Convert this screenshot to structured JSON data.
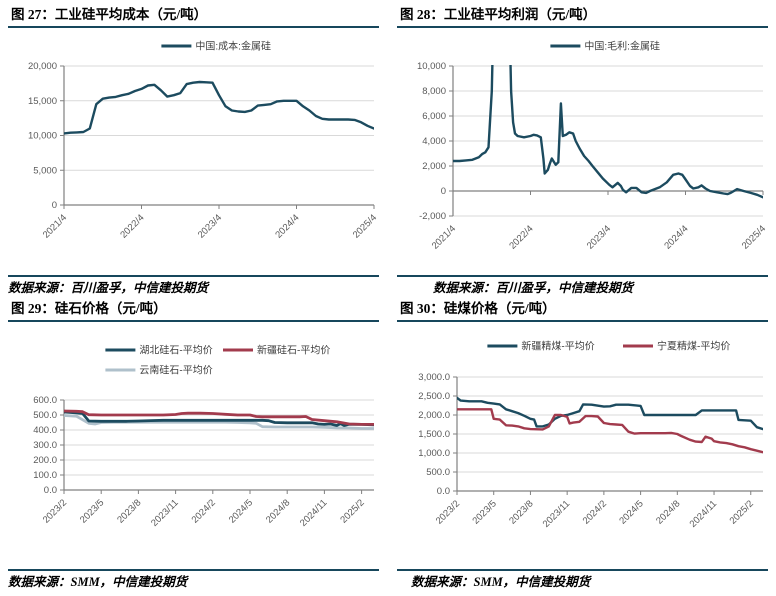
{
  "colors": {
    "teal": "#1C4B5F",
    "red": "#A23B4D",
    "lightgray": "#AFC0CB",
    "rule": "#17475C",
    "gridline": "#D9D9D9",
    "axis": "#808080",
    "tick_label": "#595959"
  },
  "chart_data": [
    {
      "type": "line",
      "title": "图 27：工业硅平均成本（元/吨）",
      "source": "数据来源：百川盈孚，中信建投期货",
      "xlabel": "",
      "ylabel": "",
      "grid": true,
      "legend_position": "top",
      "ylim": [
        0,
        20000
      ],
      "yticks": [
        0,
        5000,
        10000,
        15000,
        20000
      ],
      "ytick_labels": [
        "0",
        "5,000",
        "10,000",
        "15,000",
        "20,000"
      ],
      "xlim": [
        0,
        48
      ],
      "xticks": [
        {
          "pos": 0,
          "label": "2021/4"
        },
        {
          "pos": 12,
          "label": "2022/4"
        },
        {
          "pos": 24,
          "label": "2023/4"
        },
        {
          "pos": 36,
          "label": "2024/4"
        },
        {
          "pos": 48,
          "label": "2025/4"
        }
      ],
      "x_unit": "months from 2021/4",
      "series": [
        {
          "name": "中国:成本:金属硅",
          "color": "#1C4B5F",
          "x": [
            0,
            1,
            2,
            3,
            4,
            5,
            6,
            7,
            8,
            9,
            10,
            11,
            12,
            13,
            14,
            15,
            16,
            17,
            18,
            19,
            20,
            21,
            22,
            23,
            24,
            25,
            26,
            27,
            28,
            29,
            30,
            31,
            32,
            33,
            34,
            35,
            36,
            37,
            38,
            39,
            40,
            41,
            42,
            43,
            44,
            45,
            46,
            47,
            48
          ],
          "y": [
            10300,
            10400,
            10450,
            10500,
            11000,
            14500,
            15300,
            15450,
            15550,
            15800,
            16000,
            16400,
            16700,
            17200,
            17300,
            16500,
            15600,
            15800,
            16100,
            17400,
            17600,
            17700,
            17650,
            17600,
            15800,
            14200,
            13600,
            13450,
            13400,
            13600,
            14300,
            14400,
            14500,
            14900,
            15000,
            15000,
            15000,
            14200,
            13600,
            12800,
            12400,
            12300,
            12300,
            12300,
            12300,
            12250,
            11900,
            11400,
            11000
          ]
        }
      ]
    },
    {
      "type": "line",
      "title": "图 28：工业硅平均利润（元/吨）",
      "source": "数据来源：百川盈孚，中信建投期货",
      "xlabel": "",
      "ylabel": "",
      "grid": true,
      "legend_position": "top",
      "ylim": [
        -2000,
        10000
      ],
      "yticks": [
        -2000,
        0,
        2000,
        4000,
        6000,
        8000,
        10000
      ],
      "ytick_labels": [
        "-2,000",
        "0",
        "2,000",
        "4,000",
        "6,000",
        "8,000",
        "10,000"
      ],
      "axis_y": 0,
      "xlim": [
        0,
        48
      ],
      "xticks": [
        {
          "pos": 0,
          "label": "2021/4"
        },
        {
          "pos": 12,
          "label": "2022/4"
        },
        {
          "pos": 24,
          "label": "2023/4"
        },
        {
          "pos": 36,
          "label": "2024/4"
        },
        {
          "pos": 48,
          "label": "2025/4"
        }
      ],
      "x_unit": "months from 2021/4",
      "note": "values above 10000 are clipped off-chart as in source figure",
      "series": [
        {
          "name": "中国:毛利:金属硅",
          "color": "#1C4B5F",
          "x": [
            0,
            1,
            2,
            3,
            4,
            4.5,
            5,
            5.5,
            6,
            6.3,
            7,
            8,
            8.7,
            9,
            9.3,
            9.6,
            10,
            11,
            12,
            12.5,
            13,
            13.6,
            14,
            14.2,
            14.7,
            15,
            15.3,
            15.9,
            16.3,
            16.7,
            17,
            17.5,
            18,
            18.6,
            19,
            19.6,
            20.3,
            21,
            21.6,
            22.4,
            23.2,
            24.2,
            24.7,
            25.5,
            26,
            26.3,
            26.8,
            27.6,
            28.4,
            29.2,
            29.9,
            30.5,
            31,
            32,
            33.1,
            34.1,
            34.9,
            35.5,
            35.9,
            36.7,
            37.2,
            38,
            38.5,
            39.1,
            39.8,
            40.9,
            41.9,
            42.5,
            43,
            43.5,
            44,
            45,
            46.1,
            47.1,
            48
          ],
          "y": [
            2400,
            2400,
            2450,
            2500,
            2700,
            2950,
            3100,
            3500,
            8000,
            15000,
            30000,
            30000,
            15000,
            8000,
            5500,
            4600,
            4400,
            4300,
            4400,
            4500,
            4450,
            4300,
            2600,
            1400,
            1700,
            2200,
            2600,
            2100,
            2300,
            7000,
            4400,
            4500,
            4700,
            4600,
            4000,
            3400,
            2800,
            2400,
            2000,
            1500,
            1000,
            500,
            300,
            650,
            400,
            100,
            -100,
            250,
            250,
            -100,
            -150,
            0,
            100,
            300,
            700,
            1300,
            1400,
            1300,
            1000,
            400,
            200,
            300,
            450,
            200,
            0,
            -100,
            -200,
            -250,
            -150,
            0,
            150,
            0,
            -150,
            -300,
            -500
          ]
        }
      ]
    },
    {
      "type": "line",
      "title": "图 29：硅石价格（元/吨）",
      "source": "数据来源：SMM，中信建投期货",
      "xlabel": "",
      "ylabel": "",
      "grid": true,
      "legend_position": "top",
      "ylim": [
        0,
        600
      ],
      "yticks": [
        0,
        100,
        200,
        300,
        400,
        500,
        600
      ],
      "ytick_labels": [
        "0.0",
        "100.0",
        "200.0",
        "300.0",
        "400.0",
        "500.0",
        "600.0"
      ],
      "xlim": [
        0,
        25
      ],
      "xticks": [
        {
          "pos": 0,
          "label": "2023/2"
        },
        {
          "pos": 3,
          "label": "2023/5"
        },
        {
          "pos": 6,
          "label": "2023/8"
        },
        {
          "pos": 9,
          "label": "2023/11"
        },
        {
          "pos": 12,
          "label": "2024/2"
        },
        {
          "pos": 15,
          "label": "2024/5"
        },
        {
          "pos": 18,
          "label": "2024/8"
        },
        {
          "pos": 21,
          "label": "2024/11"
        },
        {
          "pos": 24,
          "label": "2025/2"
        }
      ],
      "x_unit": "months from 2023/2",
      "series": [
        {
          "name": "湖北硅石-平均价",
          "color": "#1C4B5F",
          "x": [
            0,
            1,
            1.5,
            2,
            3,
            4,
            5,
            6,
            7,
            8,
            9,
            10,
            11,
            12,
            13,
            14,
            15,
            16,
            16.5,
            17,
            18,
            19,
            20,
            20.5,
            21,
            21.5,
            22,
            22.3,
            22.6,
            23,
            24,
            25
          ],
          "y": [
            520,
            515,
            510,
            460,
            458,
            458,
            458,
            460,
            463,
            465,
            465,
            465,
            465,
            465,
            465,
            465,
            465,
            465,
            462,
            450,
            448,
            448,
            448,
            440,
            437,
            440,
            430,
            443,
            430,
            438,
            437,
            435
          ]
        },
        {
          "name": "新疆硅石-平均价",
          "color": "#A23B4D",
          "x": [
            0,
            1,
            1.5,
            2,
            3,
            4,
            5,
            6,
            7,
            8,
            9,
            9.5,
            10,
            11,
            12,
            13,
            14,
            15,
            15.5,
            16,
            17,
            18,
            19,
            19.5,
            20,
            21,
            22,
            23,
            24,
            25
          ],
          "y": [
            527,
            525,
            522,
            502,
            500,
            500,
            500,
            500,
            500,
            500,
            503,
            510,
            512,
            512,
            510,
            505,
            500,
            500,
            490,
            488,
            488,
            488,
            488,
            490,
            470,
            462,
            455,
            440,
            437,
            437
          ]
        },
        {
          "name": "云南硅石-平均价",
          "color": "#AFC0CB",
          "x": [
            0,
            1,
            2,
            2.5,
            3,
            4,
            5,
            6,
            7,
            8,
            9,
            10,
            11,
            12,
            13,
            14,
            15,
            15.5,
            16,
            17,
            18,
            19,
            20,
            21,
            22,
            23,
            24,
            25
          ],
          "y": [
            497,
            492,
            445,
            440,
            450,
            452,
            452,
            452,
            452,
            452,
            452,
            452,
            452,
            452,
            452,
            450,
            448,
            445,
            422,
            420,
            420,
            420,
            420,
            418,
            415,
            413,
            410,
            410
          ]
        }
      ]
    },
    {
      "type": "line",
      "title": "图 30：硅煤价格（元/吨）",
      "source": "数据来源：SMM，中信建投期货",
      "xlabel": "",
      "ylabel": "",
      "grid": true,
      "legend_position": "top",
      "ylim": [
        0,
        3000
      ],
      "yticks": [
        0,
        500,
        1000,
        1500,
        2000,
        2500,
        3000
      ],
      "ytick_labels": [
        "0.0",
        "500.0",
        "1,000.0",
        "1,500.0",
        "2,000.0",
        "2,500.0",
        "3,000.0"
      ],
      "xlim": [
        0,
        25
      ],
      "xticks": [
        {
          "pos": 0,
          "label": "2023/2"
        },
        {
          "pos": 3,
          "label": "2023/5"
        },
        {
          "pos": 6,
          "label": "2023/8"
        },
        {
          "pos": 9,
          "label": "2023/11"
        },
        {
          "pos": 12,
          "label": "2024/2"
        },
        {
          "pos": 15,
          "label": "2024/5"
        },
        {
          "pos": 18,
          "label": "2024/8"
        },
        {
          "pos": 21,
          "label": "2024/11"
        },
        {
          "pos": 24,
          "label": "2025/2"
        }
      ],
      "x_unit": "months from 2023/2",
      "series": [
        {
          "name": "新疆精煤-平均价",
          "color": "#1C4B5F",
          "x": [
            0,
            0.3,
            1,
            2,
            2.5,
            3,
            3.5,
            4,
            4.5,
            5,
            5.5,
            6,
            6.3,
            6.5,
            7,
            7.5,
            8,
            8.5,
            9,
            9.5,
            10,
            10.3,
            11,
            12,
            12.5,
            13,
            14,
            15,
            15.3,
            16,
            17,
            18,
            19,
            19.5,
            20,
            21,
            22,
            22.8,
            23,
            24,
            24.5,
            25
          ],
          "y": [
            2450,
            2380,
            2360,
            2360,
            2320,
            2300,
            2280,
            2150,
            2100,
            2050,
            1980,
            1900,
            1880,
            1700,
            1700,
            1750,
            1900,
            1980,
            2000,
            2050,
            2100,
            2280,
            2270,
            2220,
            2230,
            2270,
            2270,
            2240,
            2000,
            2000,
            2000,
            2000,
            2000,
            2000,
            2120,
            2120,
            2120,
            2120,
            1870,
            1850,
            1680,
            1630
          ]
        },
        {
          "name": "宁夏精煤-平均价",
          "color": "#A23B4D",
          "x": [
            0,
            1,
            2,
            2.8,
            3,
            3.5,
            4,
            4.5,
            5,
            5.5,
            6,
            7,
            7.5,
            8,
            8.5,
            9,
            9.2,
            9.5,
            10,
            10.5,
            11,
            11.5,
            12,
            12.5,
            13,
            13.5,
            14,
            14.5,
            15,
            16,
            17,
            17.5,
            18,
            18.3,
            19,
            19.5,
            20,
            20.3,
            20.8,
            21,
            21.5,
            22,
            22.5,
            23,
            23.5,
            24,
            24.5,
            25
          ],
          "y": [
            2150,
            2150,
            2150,
            2150,
            1900,
            1880,
            1730,
            1720,
            1700,
            1650,
            1630,
            1620,
            1700,
            2000,
            2000,
            1950,
            1780,
            1800,
            1820,
            1970,
            1970,
            1960,
            1790,
            1760,
            1750,
            1740,
            1560,
            1510,
            1520,
            1520,
            1520,
            1530,
            1500,
            1450,
            1350,
            1300,
            1290,
            1430,
            1380,
            1310,
            1280,
            1260,
            1230,
            1180,
            1150,
            1100,
            1060,
            1020
          ]
        }
      ]
    }
  ]
}
